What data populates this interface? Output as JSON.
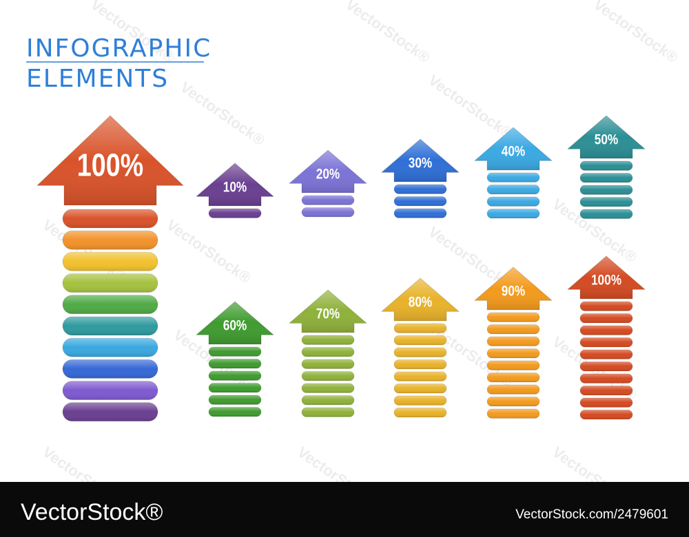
{
  "header": {
    "title_line1": "INFOGRAPHIC",
    "title_line2": "ELEMENTS"
  },
  "main_arrow": {
    "value": 100,
    "label": "100%"
  },
  "arrows": [
    {
      "value": 10,
      "label": "10%",
      "color": "#6a3f91"
    },
    {
      "value": 20,
      "label": "20%",
      "color": "#7b73d6"
    },
    {
      "value": 30,
      "label": "30%",
      "color": "#2f6fd6"
    },
    {
      "value": 40,
      "label": "40%",
      "color": "#3aa9e3"
    },
    {
      "value": 50,
      "label": "50%",
      "color": "#2b8f95"
    },
    {
      "value": 60,
      "label": "60%",
      "color": "#3f9b2f"
    },
    {
      "value": 70,
      "label": "70%",
      "color": "#8fb13a"
    },
    {
      "value": 80,
      "label": "80%",
      "color": "#e8b22a"
    },
    {
      "value": 90,
      "label": "90%",
      "color": "#f39a1d"
    },
    {
      "value": 100,
      "label": "100%",
      "color": "#d44a22"
    }
  ],
  "watermark": "VectorStock®",
  "footer": {
    "brand": "VectorStock®",
    "id": "VectorStock.com/2479601"
  }
}
